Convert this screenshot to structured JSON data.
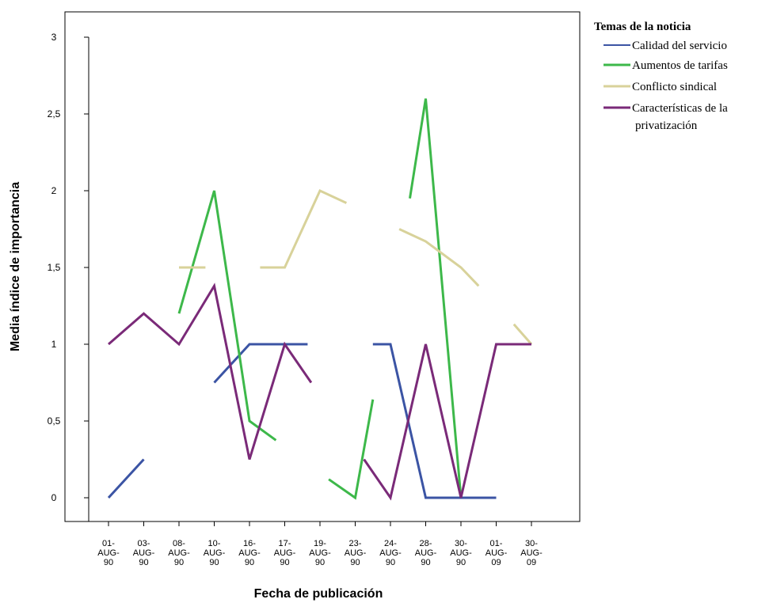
{
  "chart_data": {
    "type": "line",
    "xlabel": "Fecha de publicación",
    "ylabel": "Media índice de importancia",
    "ylim": [
      0,
      3
    ],
    "yticks": [
      0,
      0.5,
      1,
      1.5,
      2,
      2.5,
      3
    ],
    "ytick_labels": [
      "0",
      "0,5",
      "1",
      "1,5",
      "2",
      "2,5",
      "3"
    ],
    "categories": [
      "01-AUG-90",
      "03-AUG-90",
      "08-AUG-90",
      "10-AUG-90",
      "16-AUG-90",
      "17-AUG-90",
      "19-AUG-90",
      "23-AUG-90",
      "24-AUG-90",
      "28-AUG-90",
      "30-AUG-90",
      "01-AUG-09",
      "30-AUG-09"
    ],
    "category_labels": [
      [
        "01-",
        "AUG-",
        "90"
      ],
      [
        "03-",
        "AUG-",
        "90"
      ],
      [
        "08-",
        "AUG-",
        "90"
      ],
      [
        "10-",
        "AUG-",
        "90"
      ],
      [
        "16-",
        "AUG-",
        "90"
      ],
      [
        "17-",
        "AUG-",
        "90"
      ],
      [
        "19-",
        "AUG-",
        "90"
      ],
      [
        "23-",
        "AUG-",
        "90"
      ],
      [
        "24-",
        "AUG-",
        "90"
      ],
      [
        "28-",
        "AUG-",
        "90"
      ],
      [
        "30-",
        "AUG-",
        "90"
      ],
      [
        "01-",
        "AUG-",
        "09"
      ],
      [
        "30-",
        "AUG-",
        "09"
      ]
    ],
    "grid": false,
    "legend": {
      "title": "Temas de la noticia",
      "position": "top-right",
      "entries": [
        {
          "lines": [
            "Calidad del servicio"
          ],
          "color": "#3b54a4"
        },
        {
          "lines": [
            "Aumentos de tarifas"
          ],
          "color": "#3db84a"
        },
        {
          "lines": [
            "Conflicto sindical"
          ],
          "color": "#d8d29a"
        },
        {
          "lines": [
            "Características de la",
            "privatización"
          ],
          "color": "#7a2a78"
        }
      ]
    },
    "series": [
      {
        "name": "Calidad del servicio",
        "color": "#3b54a4",
        "values": [
          0,
          0.25,
          null,
          0.75,
          1,
          1,
          null,
          1,
          0,
          0,
          0,
          null,
          null
        ],
        "segments": [
          [
            [
              0,
              0
            ],
            [
              1,
              0.25
            ]
          ],
          [
            [
              3,
              0.75
            ],
            [
              4,
              1
            ],
            [
              5,
              1
            ],
            [
              5.65,
              1
            ]
          ],
          [
            [
              7.5,
              1
            ],
            [
              8,
              1
            ],
            [
              9,
              0
            ],
            [
              10,
              0
            ],
            [
              11,
              0
            ]
          ]
        ]
      },
      {
        "name": "Aumentos de tarifas",
        "color": "#3db84a",
        "values": [
          null,
          null,
          1.2,
          2,
          0.5,
          0.375,
          null,
          0,
          0.64,
          2.6,
          0,
          null,
          null
        ],
        "segments": [
          [
            [
              2,
              1.2
            ],
            [
              3,
              2
            ],
            [
              4,
              0.5
            ],
            [
              4.75,
              0.375
            ]
          ],
          [
            [
              6.25,
              0.12
            ],
            [
              7,
              0
            ],
            [
              7.5,
              0.64
            ]
          ],
          [
            [
              8.55,
              1.95
            ],
            [
              9,
              2.6
            ],
            [
              10,
              0
            ]
          ]
        ]
      },
      {
        "name": "Conflicto sindical",
        "color": "#d8d29a",
        "values": [
          null,
          null,
          1.5,
          1.5,
          1.5,
          1.5,
          2,
          1.92,
          1.75,
          1.67,
          1.5,
          1.13,
          1
        ],
        "segments": [
          [
            [
              2,
              1.5
            ],
            [
              2.75,
              1.5
            ]
          ],
          [
            [
              4.3,
              1.5
            ],
            [
              5,
              1.5
            ],
            [
              6,
              2
            ],
            [
              6.75,
              1.92
            ]
          ],
          [
            [
              8.25,
              1.75
            ],
            [
              9,
              1.67
            ],
            [
              10,
              1.5
            ],
            [
              10.5,
              1.38
            ]
          ],
          [
            [
              11.5,
              1.13
            ],
            [
              12,
              1
            ]
          ]
        ]
      },
      {
        "name": "Características de la privatización",
        "color": "#7a2a78",
        "values": [
          1,
          1.2,
          1,
          1.38,
          0.25,
          1,
          0.75,
          0.25,
          0,
          1,
          0,
          1,
          1
        ],
        "segments": [
          [
            [
              0,
              1
            ],
            [
              1,
              1.2
            ],
            [
              2,
              1
            ],
            [
              3,
              1.38
            ],
            [
              4,
              0.25
            ],
            [
              5,
              1
            ],
            [
              5.75,
              0.75
            ]
          ],
          [
            [
              7.25,
              0.25
            ],
            [
              8,
              0
            ],
            [
              9,
              1
            ],
            [
              10,
              0
            ],
            [
              11,
              1
            ],
            [
              12,
              1
            ]
          ]
        ]
      }
    ]
  }
}
